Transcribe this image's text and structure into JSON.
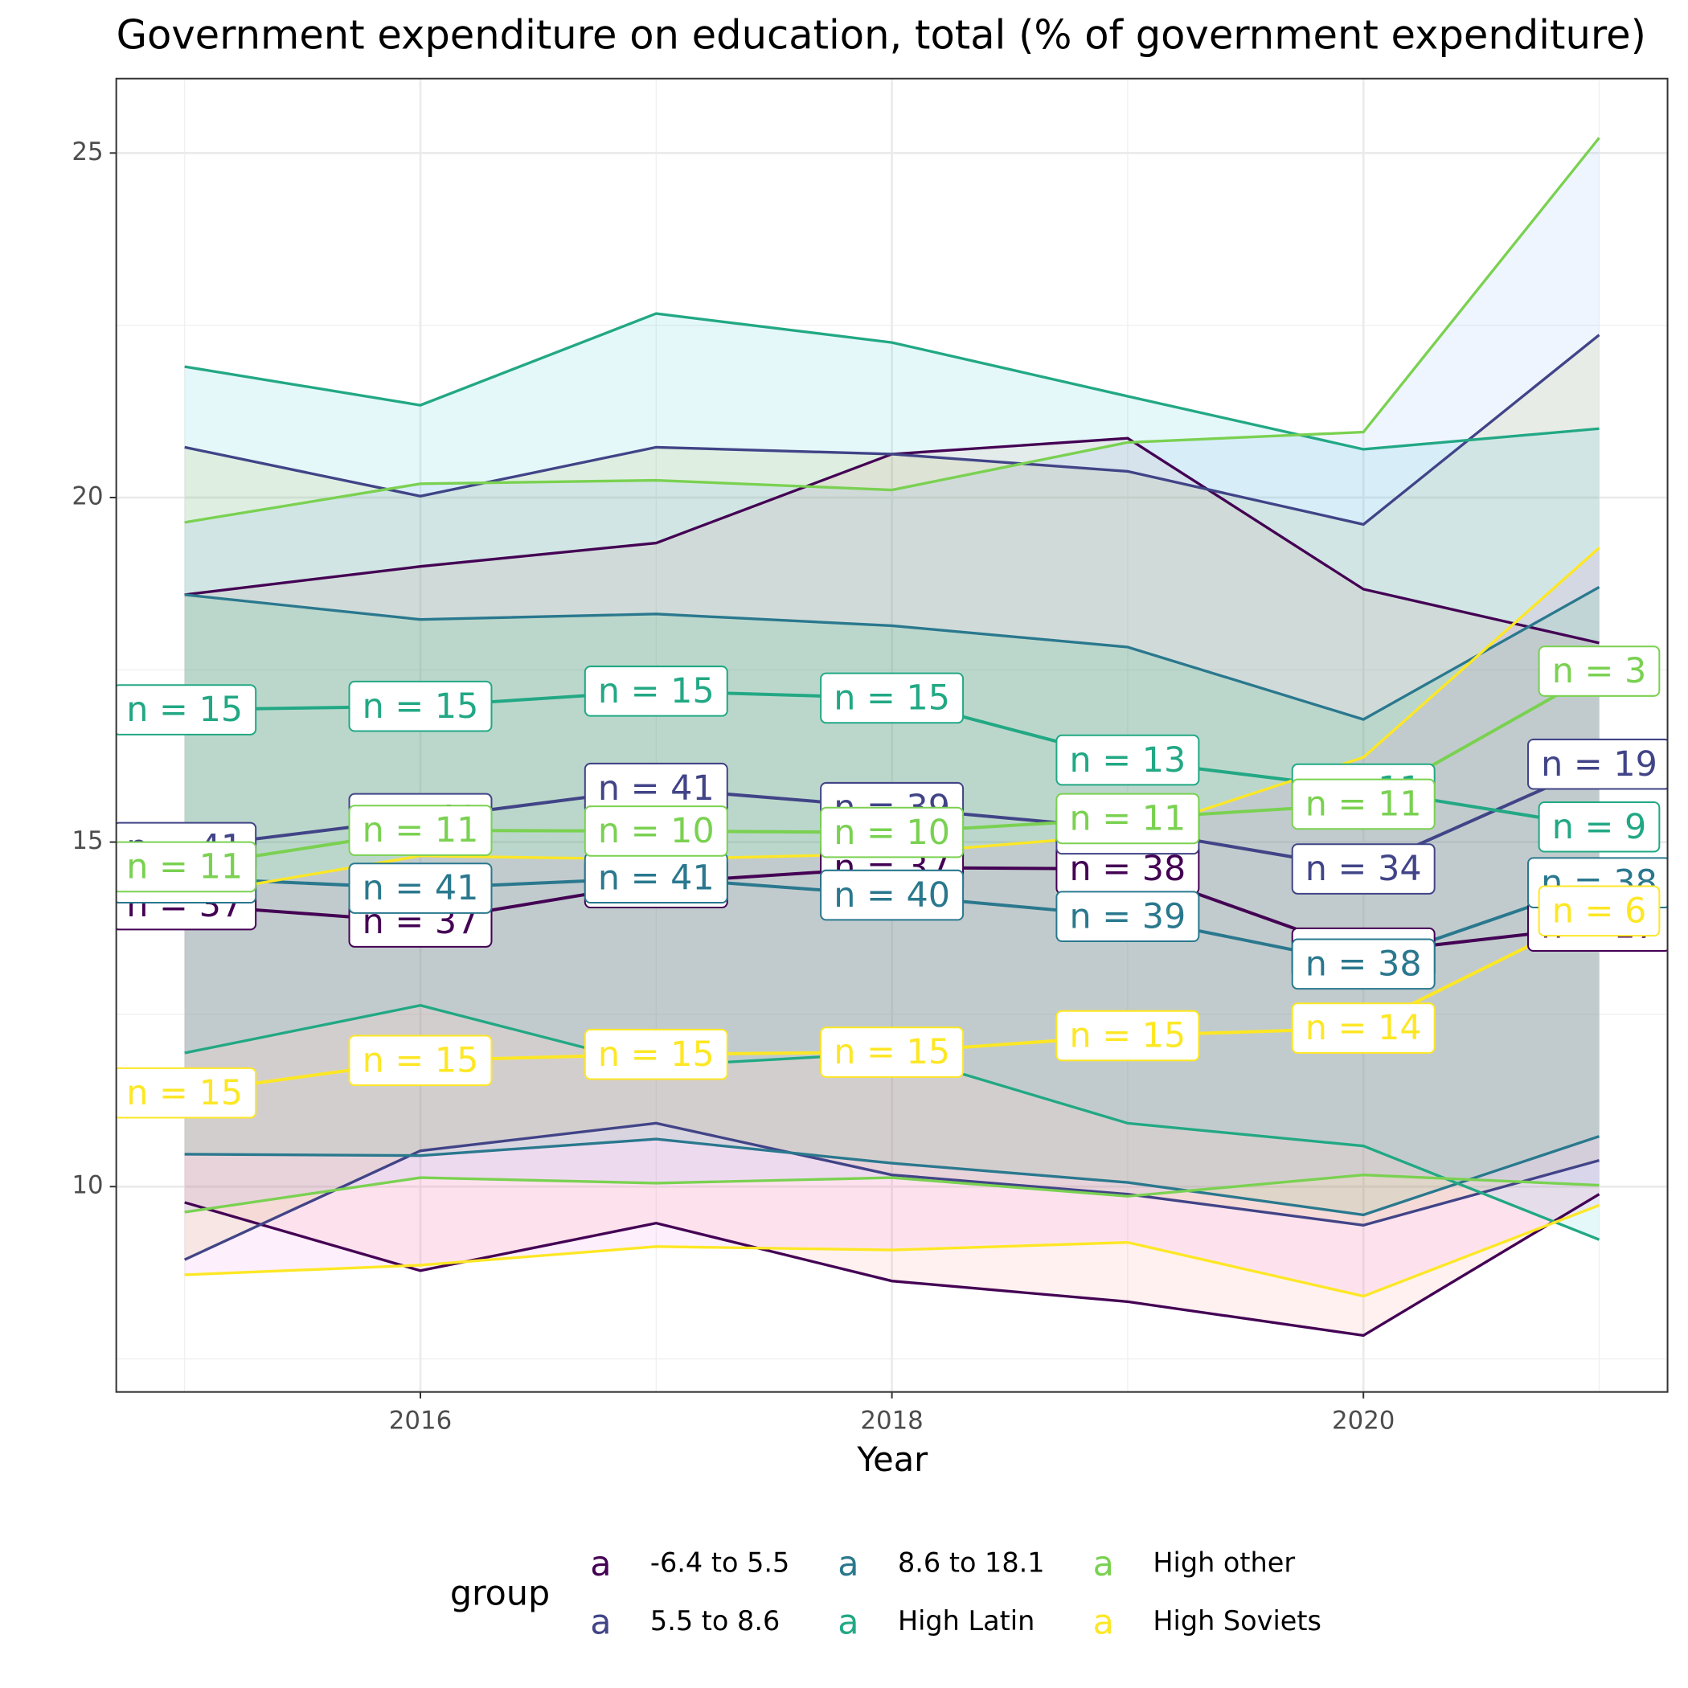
{
  "chart_data": {
    "type": "line",
    "title": "Government expenditure on education, total (% of government expenditure)",
    "x_label": "Year",
    "x": [
      2015,
      2016,
      2017,
      2018,
      2019,
      2020,
      2021
    ],
    "xlim": [
      2014.71,
      2021.29
    ],
    "xticks": [
      2016,
      2018,
      2020
    ],
    "ylim": [
      7.02,
      26.08
    ],
    "yticks": [
      10,
      15,
      20,
      25
    ],
    "grid": true,
    "legend_title": "group",
    "legend_key": "a",
    "legend_position": "bottom",
    "series": [
      {
        "name": "-6.4 to 5.5",
        "color": "#440154",
        "fill": "#F8766D",
        "values": [
          14.09,
          13.84,
          14.41,
          14.63,
          14.61,
          13.39,
          13.78
        ],
        "upper": [
          18.59,
          19.0,
          19.34,
          20.63,
          20.86,
          18.67,
          17.89
        ],
        "lower": [
          9.77,
          8.78,
          9.47,
          8.63,
          8.33,
          7.84,
          9.89
        ],
        "labels": [
          "n = 37",
          "n = 37",
          "n = 37",
          "n = 37",
          "n = 38",
          "n = 36",
          "n = 17"
        ]
      },
      {
        "name": "5.5 to 8.6",
        "color": "#414487",
        "fill": "#B79F00",
        "values": [
          14.92,
          15.34,
          15.78,
          15.5,
          15.19,
          14.61,
          16.13
        ],
        "upper": [
          20.73,
          20.02,
          20.73,
          20.63,
          20.38,
          19.61,
          22.36
        ],
        "lower": [
          8.94,
          10.52,
          10.92,
          10.17,
          9.89,
          9.44,
          10.38
        ],
        "labels": [
          "n = 41",
          "n = 41",
          "n = 41",
          "n = 39",
          "n = 38",
          "n = 34",
          "n = 19"
        ]
      },
      {
        "name": "8.6 to 18.1",
        "color": "#2A788E",
        "fill": "#00BA38",
        "values": [
          14.48,
          14.33,
          14.48,
          14.23,
          13.92,
          13.23,
          14.41
        ],
        "upper": [
          18.59,
          18.23,
          18.31,
          18.14,
          17.83,
          16.78,
          18.7
        ],
        "lower": [
          10.47,
          10.45,
          10.69,
          10.34,
          10.06,
          9.59,
          10.73
        ],
        "labels": [
          "n = 41",
          "n = 41",
          "n = 41",
          "n = 40",
          "n = 39",
          "n = 38",
          "n = 38"
        ]
      },
      {
        "name": "High Latin",
        "color": "#22A884",
        "fill": "#00BFC4",
        "values": [
          16.92,
          16.97,
          17.19,
          17.09,
          16.19,
          15.77,
          15.22
        ],
        "upper": [
          21.9,
          21.34,
          22.67,
          22.25,
          21.47,
          20.7,
          21.0
        ],
        "lower": [
          11.94,
          12.63,
          11.75,
          11.94,
          10.92,
          10.59,
          9.23
        ],
        "labels": [
          "n = 15",
          "n = 15",
          "n = 15",
          "n = 15",
          "n = 13",
          "n = 11",
          "n = 9"
        ]
      },
      {
        "name": "High other",
        "color": "#7AD151",
        "fill": "#619CFF",
        "values": [
          14.64,
          15.17,
          15.16,
          15.14,
          15.34,
          15.55,
          17.48
        ],
        "upper": [
          19.64,
          20.2,
          20.25,
          20.11,
          20.8,
          20.95,
          25.22
        ],
        "lower": [
          9.63,
          10.13,
          10.05,
          10.13,
          9.86,
          10.17,
          10.02
        ],
        "labels": [
          "n = 11",
          "n = 11",
          "n = 10",
          "n = 10",
          "n = 11",
          "n = 11",
          "n = 3"
        ]
      },
      {
        "name": "High Soviets",
        "color": "#FDE725",
        "fill": "#F564E3",
        "values": [
          11.36,
          11.83,
          11.92,
          11.95,
          12.19,
          12.3,
          14.0
        ],
        "upper": [
          14.22,
          14.8,
          14.75,
          14.83,
          15.11,
          16.23,
          19.27
        ],
        "lower": [
          8.72,
          8.86,
          9.13,
          9.08,
          9.19,
          8.41,
          9.73
        ],
        "labels": [
          "n = 15",
          "n = 15",
          "n = 15",
          "n = 15",
          "n = 15",
          "n = 14",
          "n = 6"
        ]
      }
    ]
  }
}
